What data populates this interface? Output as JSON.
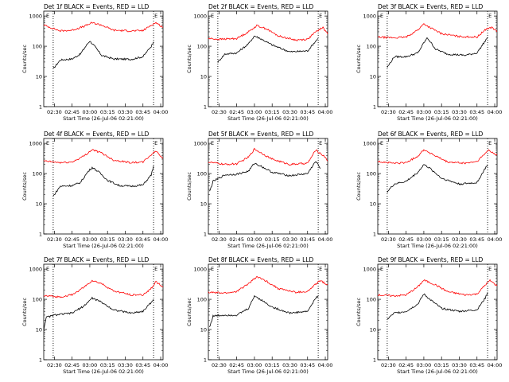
{
  "figure": {
    "background": "#ffffff",
    "colors": {
      "events": "#000000",
      "lld": "#ff0000",
      "axes": "#000000"
    }
  },
  "chart_data": [
    {
      "type": "line",
      "title": "Det 1f BLACK = Events, RED = LLD",
      "marker": "E",
      "xlabel": "Start Time (26-Jul-06 02:21:00)",
      "ylabel": "Counts/sec",
      "xticks": [
        "02:30",
        "02:45",
        "03:00",
        "03:15",
        "03:30",
        "03:45",
        "04:00"
      ],
      "yticks": [
        "1",
        "10",
        "100",
        "1000"
      ],
      "ylim": [
        1,
        1000
      ],
      "yscale": "log",
      "xlim": [
        "02:21",
        "04:02"
      ],
      "vlines": [
        "02:29",
        "03:54"
      ],
      "series": [
        {
          "name": "Events",
          "color": "#000000",
          "x": [
            "02:29",
            "02:35",
            "02:45",
            "02:52",
            "02:58",
            "03:00",
            "03:04",
            "03:10",
            "03:20",
            "03:35",
            "03:45",
            "03:52",
            "03:54"
          ],
          "values": [
            18,
            35,
            38,
            55,
            120,
            150,
            100,
            50,
            38,
            37,
            45,
            100,
            140
          ]
        },
        {
          "name": "LLD",
          "color": "#ff0000",
          "x": [
            "02:21",
            "02:35",
            "02:45",
            "02:55",
            "03:02",
            "03:10",
            "03:20",
            "03:35",
            "03:45",
            "03:52",
            "03:56",
            "04:02"
          ],
          "values": [
            500,
            320,
            340,
            450,
            600,
            500,
            340,
            320,
            330,
            500,
            600,
            420
          ]
        }
      ]
    },
    {
      "type": "line",
      "title": "Det 2f BLACK = Events, RED = LLD",
      "marker": "E",
      "xlabel": "Start Time (26-Jul-06 02:21:00)",
      "ylabel": "Counts/sec",
      "xticks": [
        "02:30",
        "02:45",
        "03:00",
        "03:15",
        "03:30",
        "03:45",
        "04:00"
      ],
      "yticks": [
        "1",
        "10",
        "100",
        "1000"
      ],
      "ylim": [
        1,
        1000
      ],
      "yscale": "log",
      "xlim": [
        "02:21",
        "04:02"
      ],
      "vlines": [
        "02:29",
        "03:54"
      ],
      "series": [
        {
          "name": "Events",
          "color": "#000000",
          "x": [
            "02:29",
            "02:35",
            "02:45",
            "02:55",
            "03:00",
            "03:05",
            "03:15",
            "03:30",
            "03:45",
            "03:52",
            "03:54"
          ],
          "values": [
            30,
            55,
            60,
            120,
            220,
            180,
            110,
            65,
            70,
            150,
            180
          ]
        },
        {
          "name": "LLD",
          "color": "#ff0000",
          "x": [
            "02:21",
            "02:30",
            "02:45",
            "02:55",
            "03:02",
            "03:10",
            "03:20",
            "03:35",
            "03:45",
            "03:52",
            "03:58",
            "04:02"
          ],
          "values": [
            180,
            170,
            180,
            300,
            480,
            380,
            220,
            160,
            170,
            300,
            420,
            250
          ]
        }
      ]
    },
    {
      "type": "line",
      "title": "Det 3f BLACK = Events, RED = LLD",
      "marker": "E",
      "xlabel": "Start Time (26-Jul-06 02:21:00)",
      "ylabel": "Counts/sec",
      "xticks": [
        "02:30",
        "02:45",
        "03:00",
        "03:15",
        "03:30",
        "03:45",
        "04:00"
      ],
      "yticks": [
        "1",
        "10",
        "100",
        "1000"
      ],
      "ylim": [
        1,
        1000
      ],
      "yscale": "log",
      "xlim": [
        "02:21",
        "04:02"
      ],
      "vlines": [
        "02:29",
        "03:54"
      ],
      "series": [
        {
          "name": "Events",
          "color": "#000000",
          "x": [
            "02:29",
            "02:35",
            "02:45",
            "02:55",
            "03:00",
            "03:03",
            "03:10",
            "03:20",
            "03:35",
            "03:45",
            "03:52",
            "03:54"
          ],
          "values": [
            20,
            45,
            45,
            60,
            130,
            190,
            80,
            55,
            50,
            60,
            150,
            200
          ]
        },
        {
          "name": "LLD",
          "color": "#ff0000",
          "x": [
            "02:21",
            "02:35",
            "02:45",
            "02:55",
            "03:00",
            "03:05",
            "03:15",
            "03:30",
            "03:45",
            "03:53",
            "03:58",
            "04:02"
          ],
          "values": [
            200,
            190,
            200,
            350,
            550,
            420,
            260,
            210,
            200,
            380,
            420,
            300
          ]
        }
      ]
    },
    {
      "type": "line",
      "title": "Det 4f BLACK = Events, RED = LLD",
      "marker": "E",
      "xlabel": "Start Time (26-Jul-06 02:21:00)",
      "ylabel": "Counts/sec",
      "xticks": [
        "02:30",
        "02:45",
        "03:00",
        "03:15",
        "03:30",
        "03:45",
        "04:00"
      ],
      "yticks": [
        "1",
        "10",
        "100",
        "1000"
      ],
      "ylim": [
        1,
        1000
      ],
      "yscale": "log",
      "xlim": [
        "02:21",
        "04:02"
      ],
      "vlines": [
        "02:29",
        "03:54"
      ],
      "series": [
        {
          "name": "Events",
          "color": "#000000",
          "x": [
            "02:29",
            "02:35",
            "02:45",
            "02:52",
            "02:58",
            "03:02",
            "03:08",
            "03:15",
            "03:25",
            "03:35",
            "03:45",
            "03:52",
            "03:54"
          ],
          "values": [
            18,
            38,
            40,
            50,
            110,
            160,
            110,
            60,
            40,
            38,
            42,
            90,
            180
          ]
        },
        {
          "name": "LLD",
          "color": "#ff0000",
          "x": [
            "02:21",
            "02:35",
            "02:45",
            "02:55",
            "03:02",
            "03:10",
            "03:20",
            "03:35",
            "03:45",
            "03:52",
            "03:56",
            "04:02"
          ],
          "values": [
            260,
            230,
            240,
            380,
            620,
            480,
            280,
            230,
            240,
            420,
            560,
            320
          ]
        }
      ]
    },
    {
      "type": "line",
      "title": "Det 5f BLACK = Events, RED = LLD",
      "marker": "E",
      "xlabel": "Start Time (26-Jul-06 02:21:00)",
      "ylabel": "Counts/sec",
      "xticks": [
        "02:30",
        "02:45",
        "03:00",
        "03:15",
        "03:30",
        "03:45",
        "04:00"
      ],
      "yticks": [
        "1",
        "10",
        "100",
        "1000"
      ],
      "ylim": [
        1,
        1000
      ],
      "yscale": "log",
      "xlim": [
        "02:21",
        "04:02"
      ],
      "vlines": [
        "02:29",
        "03:54"
      ],
      "series": [
        {
          "name": "Events",
          "color": "#000000",
          "x": [
            "02:22",
            "02:25",
            "02:35",
            "02:45",
            "02:55",
            "03:00",
            "03:05",
            "03:15",
            "03:30",
            "03:45",
            "03:50",
            "03:52",
            "03:56"
          ],
          "values": [
            25,
            55,
            90,
            95,
            120,
            220,
            180,
            110,
            85,
            100,
            200,
            250,
            150
          ]
        },
        {
          "name": "LLD",
          "color": "#ff0000",
          "x": [
            "02:21",
            "02:35",
            "02:45",
            "02:55",
            "03:00",
            "03:05",
            "03:15",
            "03:30",
            "03:45",
            "03:52",
            "04:00",
            "04:02"
          ],
          "values": [
            240,
            200,
            210,
            350,
            650,
            500,
            300,
            200,
            220,
            600,
            350,
            260
          ]
        }
      ]
    },
    {
      "type": "line",
      "title": "Det 6f BLACK = Events, RED = LLD",
      "marker": "E",
      "xlabel": "Start Time (26-Jul-06 02:21:00)",
      "ylabel": "Counts/sec",
      "xticks": [
        "02:30",
        "02:45",
        "03:00",
        "03:15",
        "03:30",
        "03:45",
        "04:00"
      ],
      "yticks": [
        "1",
        "10",
        "100",
        "1000"
      ],
      "ylim": [
        1,
        1000
      ],
      "yscale": "log",
      "xlim": [
        "02:21",
        "04:02"
      ],
      "vlines": [
        "02:29",
        "03:54"
      ],
      "series": [
        {
          "name": "Events",
          "color": "#000000",
          "x": [
            "02:29",
            "02:35",
            "02:45",
            "02:55",
            "03:00",
            "03:05",
            "03:15",
            "03:30",
            "03:45",
            "03:52",
            "03:54"
          ],
          "values": [
            25,
            45,
            55,
            110,
            200,
            150,
            70,
            45,
            50,
            150,
            200
          ]
        },
        {
          "name": "LLD",
          "color": "#ff0000",
          "x": [
            "02:21",
            "02:35",
            "02:45",
            "02:55",
            "03:00",
            "03:10",
            "03:20",
            "03:35",
            "03:45",
            "03:55",
            "04:02"
          ],
          "values": [
            250,
            220,
            230,
            380,
            620,
            380,
            240,
            220,
            250,
            600,
            400
          ]
        }
      ]
    },
    {
      "type": "line",
      "title": "Det 7f BLACK = Events, RED = LLD",
      "marker": "E",
      "xlabel": "Start Time (26-Jul-06 02:21:00)",
      "ylabel": "Counts/sec",
      "xticks": [
        "02:30",
        "02:45",
        "03:00",
        "03:15",
        "03:30",
        "03:45",
        "04:00"
      ],
      "yticks": [
        "1",
        "10",
        "100",
        "1000"
      ],
      "ylim": [
        1,
        1000
      ],
      "yscale": "log",
      "xlim": [
        "02:21",
        "04:02"
      ],
      "vlines": [
        "02:29",
        "03:54"
      ],
      "series": [
        {
          "name": "Events",
          "color": "#000000",
          "x": [
            "02:21",
            "02:23",
            "02:30",
            "02:45",
            "02:55",
            "03:02",
            "03:10",
            "03:20",
            "03:35",
            "03:45",
            "03:52",
            "03:54"
          ],
          "values": [
            10,
            25,
            30,
            35,
            60,
            110,
            80,
            45,
            35,
            40,
            80,
            100
          ]
        },
        {
          "name": "LLD",
          "color": "#ff0000",
          "x": [
            "02:21",
            "02:35",
            "02:45",
            "02:55",
            "03:02",
            "03:10",
            "03:20",
            "03:35",
            "03:45",
            "03:52",
            "03:56",
            "04:02"
          ],
          "values": [
            130,
            120,
            140,
            250,
            420,
            330,
            190,
            140,
            140,
            230,
            380,
            260
          ]
        }
      ]
    },
    {
      "type": "line",
      "title": "Det 8f BLACK = Events, RED = LLD",
      "marker": "E",
      "xlabel": "Start Time (26-Jul-06 02:21:00)",
      "ylabel": "Counts/sec",
      "xticks": [
        "02:30",
        "02:45",
        "03:00",
        "03:15",
        "03:30",
        "03:45",
        "04:00"
      ],
      "yticks": [
        "1",
        "10",
        "100",
        "1000"
      ],
      "ylim": [
        1,
        1000
      ],
      "yscale": "log",
      "xlim": [
        "02:21",
        "04:02"
      ],
      "vlines": [
        "02:29",
        "03:54"
      ],
      "series": [
        {
          "name": "Events",
          "color": "#000000",
          "x": [
            "02:22",
            "02:25",
            "02:35",
            "02:45",
            "02:55",
            "03:00",
            "03:05",
            "03:15",
            "03:30",
            "03:45",
            "03:52",
            "03:54"
          ],
          "values": [
            12,
            28,
            30,
            30,
            50,
            130,
            100,
            55,
            35,
            40,
            110,
            130
          ]
        },
        {
          "name": "LLD",
          "color": "#ff0000",
          "x": [
            "02:21",
            "02:35",
            "02:45",
            "02:55",
            "03:02",
            "03:10",
            "03:20",
            "03:35",
            "03:45",
            "03:52",
            "03:56",
            "04:02"
          ],
          "values": [
            170,
            160,
            180,
            330,
            560,
            400,
            230,
            170,
            180,
            320,
            420,
            300
          ]
        }
      ]
    },
    {
      "type": "line",
      "title": "Det 9f BLACK = Events, RED = LLD",
      "marker": "E",
      "xlabel": "Start Time (26-Jul-06 02:21:00)",
      "ylabel": "Counts/sec",
      "xticks": [
        "02:30",
        "02:45",
        "03:00",
        "03:15",
        "03:30",
        "03:45",
        "04:00"
      ],
      "yticks": [
        "1",
        "10",
        "100",
        "1000"
      ],
      "ylim": [
        1,
        1000
      ],
      "yscale": "log",
      "xlim": [
        "02:21",
        "04:02"
      ],
      "vlines": [
        "02:29",
        "03:54"
      ],
      "series": [
        {
          "name": "Events",
          "color": "#000000",
          "x": [
            "02:29",
            "02:35",
            "02:45",
            "02:55",
            "03:00",
            "03:05",
            "03:15",
            "03:30",
            "03:45",
            "03:52",
            "03:54"
          ],
          "values": [
            22,
            35,
            40,
            70,
            150,
            100,
            50,
            40,
            45,
            110,
            170
          ]
        },
        {
          "name": "LLD",
          "color": "#ff0000",
          "x": [
            "02:21",
            "02:35",
            "02:45",
            "02:55",
            "03:00",
            "03:10",
            "03:20",
            "03:35",
            "03:45",
            "03:52",
            "03:56",
            "04:02"
          ],
          "values": [
            140,
            130,
            140,
            260,
            430,
            300,
            180,
            140,
            150,
            300,
            420,
            280
          ]
        }
      ]
    }
  ]
}
